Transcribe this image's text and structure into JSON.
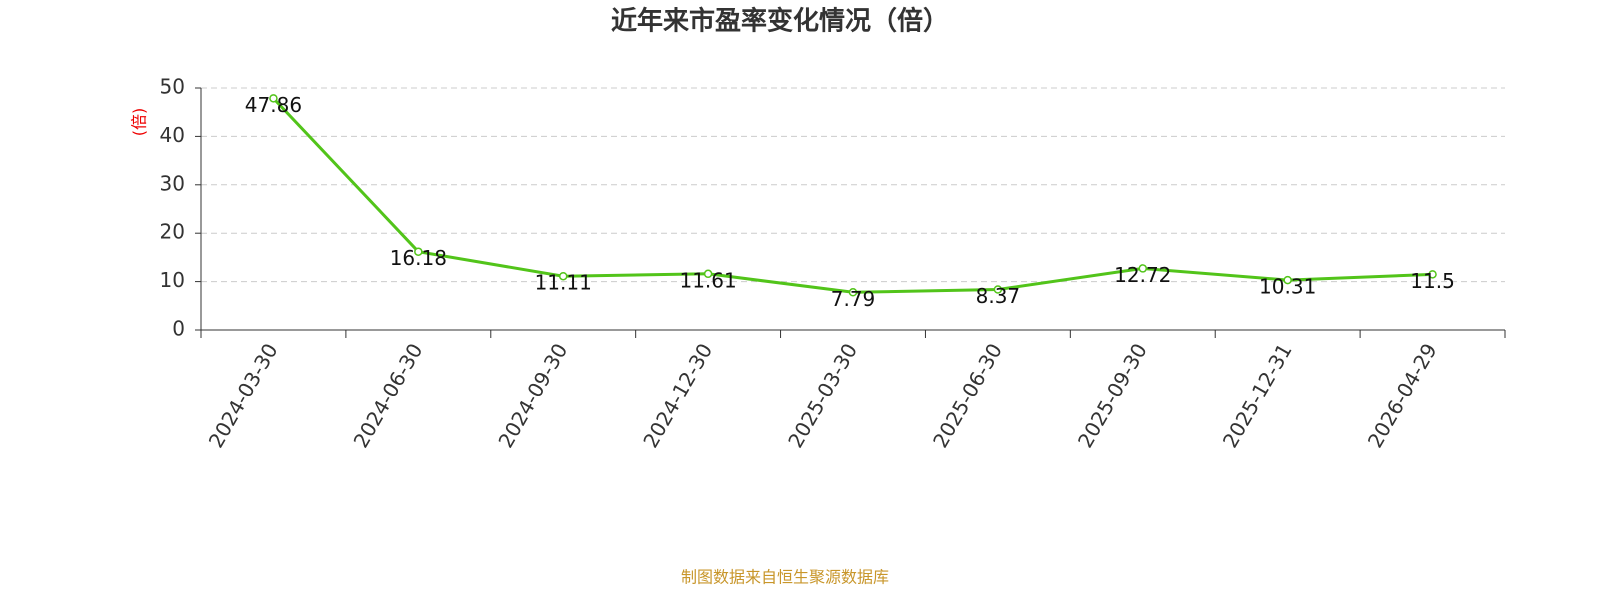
{
  "chart_data": {
    "type": "line",
    "title": "近年来市盈率变化情况（倍）",
    "y_label": "(倍)",
    "categories": [
      "2024-03-30",
      "2024-06-30",
      "2024-09-30",
      "2024-12-30",
      "2025-03-30",
      "2025-06-30",
      "2025-09-30",
      "2025-12-31",
      "2026-04-29"
    ],
    "values": [
      47.86,
      16.18,
      11.11,
      11.61,
      7.79,
      8.37,
      12.72,
      10.31,
      11.5
    ],
    "color": "#52c41a",
    "ylim": [
      0,
      50
    ],
    "yticks": [
      0,
      10,
      20,
      30,
      40,
      50
    ],
    "grid": true,
    "source": "制图数据来自恒生聚源数据库"
  }
}
